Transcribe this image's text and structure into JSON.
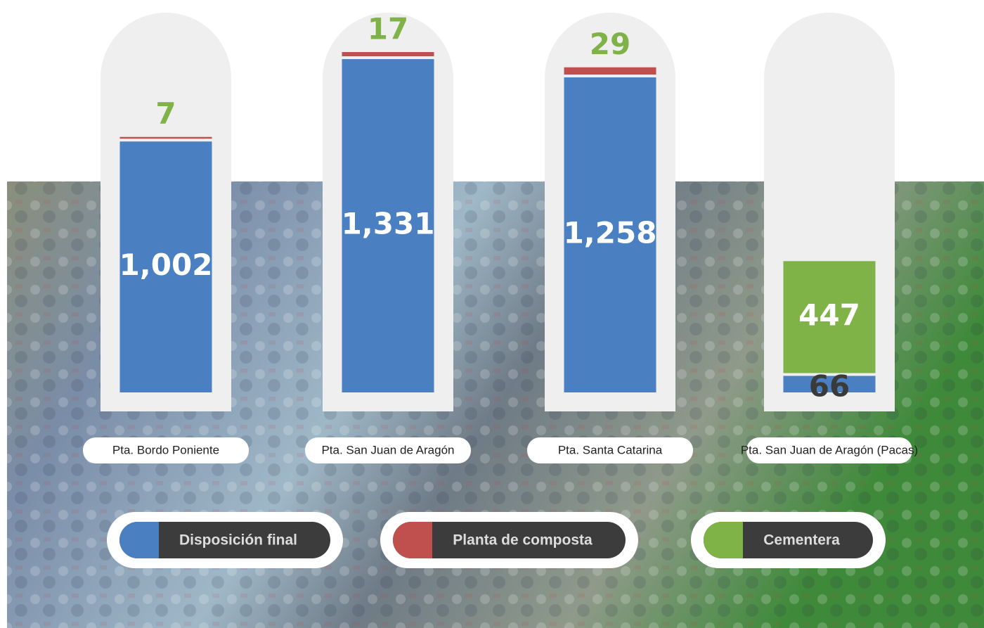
{
  "chart_data": {
    "type": "stacked-bar",
    "categories": [
      "Pta. Bordo Poniente",
      "Pta. San Juan de Aragón",
      "Pta. Santa Catarina",
      "Pta. San Juan de Aragón (Pacas)"
    ],
    "series": [
      {
        "name": "Disposición final",
        "color": "#4a7fc1",
        "values": [
          1002,
          1331,
          1258,
          66
        ],
        "value_labels": [
          "1,002",
          "1,331",
          "1,258",
          "66"
        ]
      },
      {
        "name": "Planta de composta",
        "color": "#c0504d",
        "values": [
          7,
          17,
          29,
          null
        ]
      },
      {
        "name": "Cementera",
        "color": "#7fb247",
        "values": [
          null,
          null,
          null,
          447
        ]
      }
    ]
  }
}
